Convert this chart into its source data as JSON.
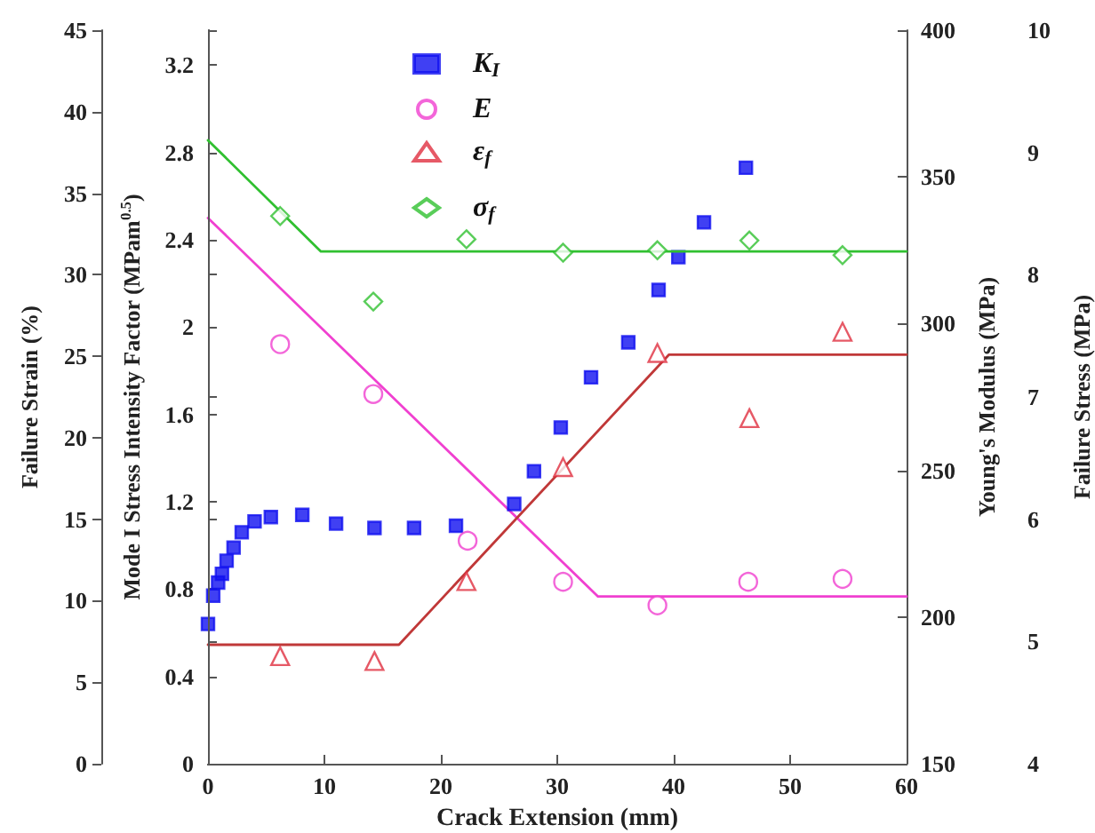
{
  "chart_data": [
    {
      "type": "scatter",
      "xlabel": "Crack Extension (mm)",
      "ylabel": "Mode I Stress Intensity Factor (MPam$^{0.5}$)",
      "y2label": "Young's Modulus (MPa)",
      "y3label": "Failure Strain (%)",
      "xlim": [
        0,
        60
      ],
      "xticks": [
        0,
        10,
        20,
        30,
        40,
        50,
        60
      ],
      "ylim": [
        0,
        3.36
      ],
      "yticks": [
        0,
        0.4,
        0.8,
        1.2,
        1.6,
        2,
        2.4,
        2.8,
        3.2
      ],
      "y2lim": [
        150,
        400
      ],
      "y2ticks": [
        150,
        200,
        250,
        300,
        350,
        400
      ],
      "y3lim": [
        0,
        45
      ],
      "y3ticks": [
        0,
        5,
        10,
        15,
        20,
        25,
        30,
        35,
        40,
        45
      ],
      "legend": "top left",
      "grid": false,
      "series": [
        {
          "name": "K$_{I}$",
          "marker": "square",
          "color": "#1010f0",
          "x": [
            0,
            0.45,
            0.87,
            1.2,
            1.6,
            2.2,
            2.9,
            4.0,
            5.4,
            8.1,
            11.0,
            14.3,
            17.7,
            21.3,
            26.3,
            28.0,
            30.3,
            32.9,
            36.1,
            38.7,
            40.4,
            42.6,
            46.2
          ],
          "values": [
            0.64,
            0.77,
            0.83,
            0.87,
            0.93,
            0.99,
            1.06,
            1.11,
            1.13,
            1.14,
            1.1,
            1.08,
            1.08,
            1.09,
            1.19,
            1.34,
            1.54,
            1.77,
            1.93,
            2.17,
            2.32,
            2.48,
            2.73
          ]
        },
        {
          "name": "E",
          "marker": "circle",
          "color": "#f040d0",
          "axis": "y2",
          "x": [
            6.2,
            14.2,
            22.3,
            30.5,
            38.6,
            46.4,
            54.5
          ],
          "values": [
            293,
            276,
            226,
            212,
            204,
            212,
            213
          ]
        },
        {
          "name": "ε$_{f}$",
          "marker": "triangle",
          "color": "#e03040",
          "axis": "y3",
          "x": [
            6.2,
            14.3,
            22.2,
            30.5,
            38.6,
            46.5,
            54.5
          ],
          "values": [
            6.6,
            6.3,
            11.2,
            18.2,
            25.2,
            21.2,
            26.5
          ]
        },
        {
          "type": "line",
          "marker": "none",
          "color": "#f040d0",
          "axis": "y2",
          "x": [
            0,
            33.5,
            60
          ],
          "values": [
            336,
            207,
            207
          ]
        },
        {
          "type": "line",
          "marker": "none",
          "color": "#c03838",
          "axis": "y3",
          "x": [
            0,
            16.4,
            39.6,
            60
          ],
          "values": [
            7.3,
            7.3,
            25.1,
            25.1
          ]
        }
      ]
    },
    {
      "type": "scatter",
      "y2label": "Failure Stress (MPa)",
      "xlim": [
        0,
        60
      ],
      "xticks": [
        0,
        10,
        20,
        30,
        40,
        50,
        60
      ],
      "tick_labels": "y",
      "y2lim": [
        4,
        10
      ],
      "y2ticks": [
        4,
        5,
        6,
        7,
        8,
        9,
        10
      ],
      "legend": "top left",
      "grid": false,
      "series": [
        {
          "name": "σ$_{f}$",
          "marker": "diamond",
          "color": "#30c030",
          "axis": "y2",
          "x": [
            6.2,
            14.2,
            22.2,
            30.5,
            38.6,
            46.5,
            54.5
          ],
          "values": [
            8.48,
            7.78,
            8.29,
            8.18,
            8.2,
            8.28,
            8.16
          ]
        },
        {
          "type": "line",
          "marker": "none",
          "color": "#30c030",
          "axis": "y2",
          "x": [
            0,
            9.7,
            60
          ],
          "values": [
            9.1,
            8.19,
            8.19
          ]
        }
      ]
    }
  ]
}
